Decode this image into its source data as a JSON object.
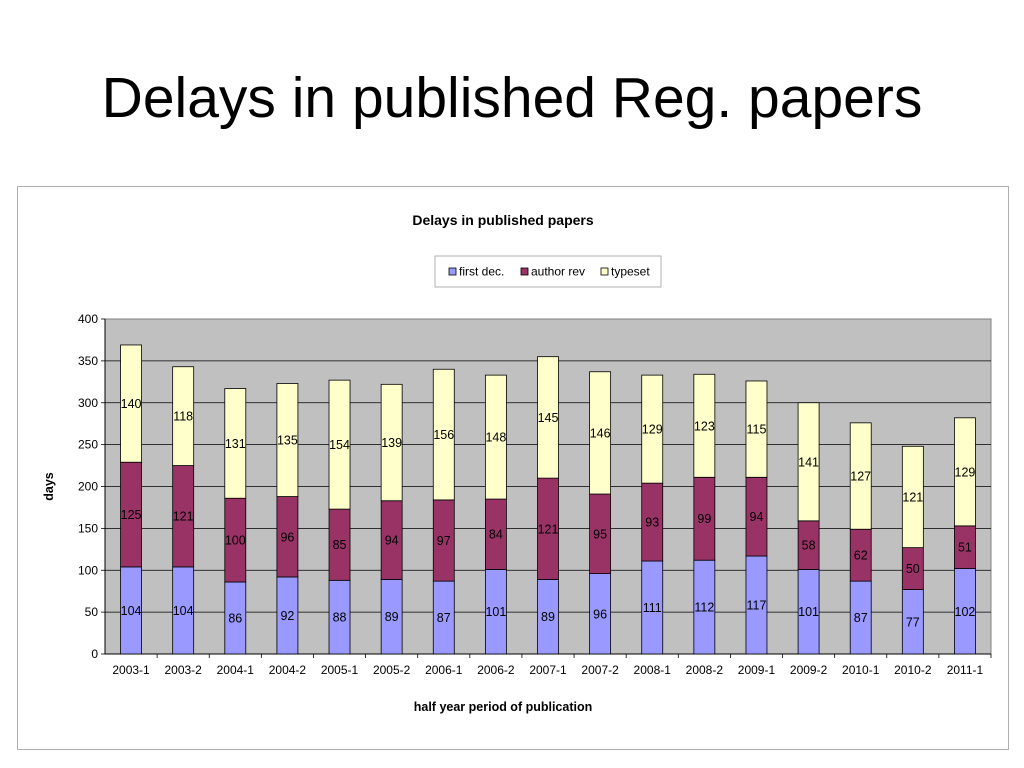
{
  "slide": {
    "title": "Delays in published Reg. papers"
  },
  "chart_data": {
    "type": "bar",
    "stacked": true,
    "title": "Delays in published papers",
    "xlabel": "half year period of publication",
    "ylabel": "days",
    "ylim": [
      0,
      400
    ],
    "yticks": [
      0,
      50,
      100,
      150,
      200,
      250,
      300,
      350,
      400
    ],
    "grid": true,
    "legend": "top-center",
    "categories": [
      "2003-1",
      "2003-2",
      "2004-1",
      "2004-2",
      "2005-1",
      "2005-2",
      "2006-1",
      "2006-2",
      "2007-1",
      "2007-2",
      "2008-1",
      "2008-2",
      "2009-1",
      "2009-2",
      "2010-1",
      "2010-2",
      "2011-1"
    ],
    "series": [
      {
        "name": "first dec.",
        "color": "#9999ff",
        "values": [
          104,
          104,
          86,
          92,
          88,
          89,
          87,
          101,
          89,
          96,
          111,
          112,
          117,
          101,
          87,
          77,
          102
        ]
      },
      {
        "name": "author rev",
        "color": "#993366",
        "values": [
          125,
          121,
          100,
          96,
          85,
          94,
          97,
          84,
          121,
          95,
          93,
          99,
          94,
          58,
          62,
          50,
          51
        ]
      },
      {
        "name": "typeset",
        "color": "#ffffcc",
        "values": [
          140,
          118,
          131,
          135,
          154,
          139,
          156,
          148,
          145,
          146,
          129,
          123,
          115,
          141,
          127,
          121,
          129
        ]
      }
    ],
    "colors": {
      "plot_background": "#c0c0c0",
      "bar_outline": "#000000"
    }
  }
}
